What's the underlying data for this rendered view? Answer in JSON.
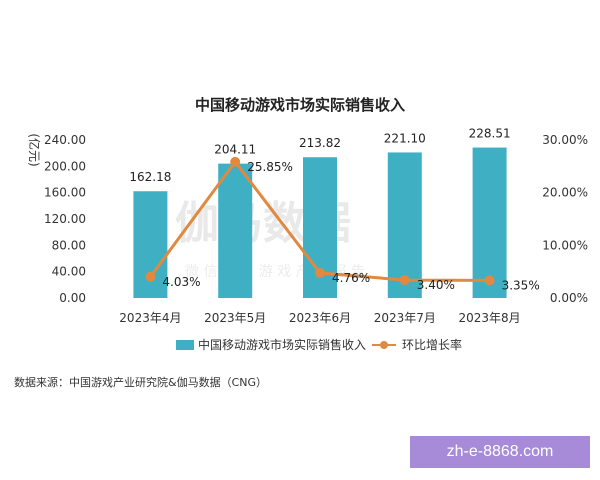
{
  "chart_data": {
    "type": "bar",
    "title": "中国移动游戏市场实际销售收入",
    "ylabel": "(亿元)",
    "categories": [
      "2023年4月",
      "2023年5月",
      "2023年6月",
      "2023年7月",
      "2023年8月"
    ],
    "series": [
      {
        "name": "中国移动游戏市场实际销售收入",
        "type": "bar",
        "axis": "left",
        "values": [
          162.18,
          204.11,
          213.82,
          221.1,
          228.51
        ],
        "labels": [
          "162.18",
          "204.11",
          "213.82",
          "221.10",
          "228.51"
        ],
        "color": "#3fb0c4"
      },
      {
        "name": "环比增长率",
        "type": "line",
        "axis": "right",
        "values": [
          4.03,
          25.85,
          4.76,
          3.4,
          3.35
        ],
        "labels": [
          "4.03%",
          "25.85%",
          "4.76%",
          "3.40%",
          "3.35%"
        ],
        "color": "#e0893f"
      }
    ],
    "y_left": {
      "range": [
        0,
        240
      ],
      "ticks": [
        "0.00",
        "40.00",
        "80.00",
        "120.00",
        "160.00",
        "200.00",
        "240.00"
      ]
    },
    "y_right": {
      "range": [
        0,
        30
      ],
      "ticks": [
        "0.00%",
        "10.00%",
        "20.00%",
        "30.00%"
      ]
    },
    "grid": false,
    "legend_placement": "bottom"
  },
  "source_text": "数据来源：中国游戏产业研究院&伽马数据（CNG）",
  "watermark": {
    "main": "伽马数据",
    "sub": "微 信 号 ： 游 戏 产 业 报 告",
    "corner": "zh-e-8868.com"
  }
}
